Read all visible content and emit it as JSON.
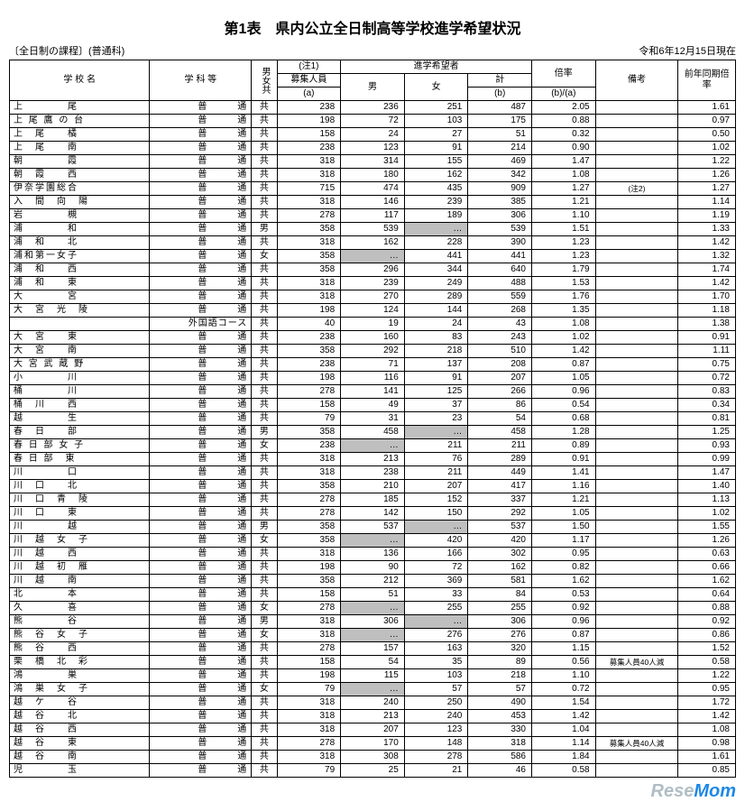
{
  "title": "第1表　県内公立全日制高等学校進学希望状況",
  "subtitle_left": "〔全日制の課程〕(普通科)",
  "subtitle_right": "令和6年12月15日現在",
  "header": {
    "school": "学 校 名",
    "dept": "学 科 等",
    "sex": "男女共",
    "note1": "(注1)",
    "capacity": "募集人員",
    "capacity_sub": "(a)",
    "applicants": "進学希望者",
    "male": "男",
    "female": "女",
    "total": "計",
    "total_sub": "(b)",
    "ratio": "倍率",
    "ratio_sub": "(b)/(a)",
    "remark": "備考",
    "prev": "前年同期倍率"
  },
  "rows": [
    {
      "school": "上　　　　尾",
      "dept": "普　　　通",
      "sex": "共",
      "cap": "238",
      "m": "236",
      "f": "251",
      "t": "487",
      "r": "2.05",
      "rm": "",
      "p": "1.61"
    },
    {
      "school": "上 尾 鷹 の 台",
      "dept": "普　　　通",
      "sex": "共",
      "cap": "198",
      "m": "72",
      "f": "103",
      "t": "175",
      "r": "0.88",
      "rm": "",
      "p": "0.97"
    },
    {
      "school": "上　尾　　橘",
      "dept": "普　　　通",
      "sex": "共",
      "cap": "158",
      "m": "24",
      "f": "27",
      "t": "51",
      "r": "0.32",
      "rm": "",
      "p": "0.50"
    },
    {
      "school": "上　尾　　南",
      "dept": "普　　　通",
      "sex": "共",
      "cap": "238",
      "m": "123",
      "f": "91",
      "t": "214",
      "r": "0.90",
      "rm": "",
      "p": "1.02"
    },
    {
      "school": "朝　　　　霞",
      "dept": "普　　　通",
      "sex": "共",
      "cap": "318",
      "m": "314",
      "f": "155",
      "t": "469",
      "r": "1.47",
      "rm": "",
      "p": "1.22"
    },
    {
      "school": "朝　霞　　西",
      "dept": "普　　　通",
      "sex": "共",
      "cap": "318",
      "m": "180",
      "f": "162",
      "t": "342",
      "r": "1.08",
      "rm": "",
      "p": "1.26"
    },
    {
      "school": "伊奈学園総合",
      "dept": "普　　　通",
      "sex": "共",
      "cap": "715",
      "m": "474",
      "f": "435",
      "t": "909",
      "r": "1.27",
      "rm": "(注2)",
      "p": "1.27"
    },
    {
      "school": "入　間　向　陽",
      "dept": "普　　　通",
      "sex": "共",
      "cap": "318",
      "m": "146",
      "f": "239",
      "t": "385",
      "r": "1.21",
      "rm": "",
      "p": "1.14"
    },
    {
      "school": "岩　　　　槻",
      "dept": "普　　　通",
      "sex": "共",
      "cap": "278",
      "m": "117",
      "f": "189",
      "t": "306",
      "r": "1.10",
      "rm": "",
      "p": "1.19"
    },
    {
      "school": "浦　　　　和",
      "dept": "普　　　通",
      "sex": "男",
      "cap": "358",
      "m": "539",
      "f": "…",
      "fg": true,
      "t": "539",
      "r": "1.51",
      "rm": "",
      "p": "1.33"
    },
    {
      "school": "浦　和　　北",
      "dept": "普　　　通",
      "sex": "共",
      "cap": "318",
      "m": "162",
      "f": "228",
      "t": "390",
      "r": "1.23",
      "rm": "",
      "p": "1.42"
    },
    {
      "school": "浦和第一女子",
      "dept": "普　　　通",
      "sex": "女",
      "cap": "358",
      "m": "…",
      "mg": true,
      "f": "441",
      "t": "441",
      "r": "1.23",
      "rm": "",
      "p": "1.32"
    },
    {
      "school": "浦　和　　西",
      "dept": "普　　　通",
      "sex": "共",
      "cap": "358",
      "m": "296",
      "f": "344",
      "t": "640",
      "r": "1.79",
      "rm": "",
      "p": "1.74"
    },
    {
      "school": "浦　和　　東",
      "dept": "普　　　通",
      "sex": "共",
      "cap": "318",
      "m": "239",
      "f": "249",
      "t": "488",
      "r": "1.53",
      "rm": "",
      "p": "1.42"
    },
    {
      "school": "大　　　　宮",
      "dept": "普　　　通",
      "sex": "共",
      "cap": "318",
      "m": "270",
      "f": "289",
      "t": "559",
      "r": "1.76",
      "rm": "",
      "p": "1.70"
    },
    {
      "school": "大　宮　光　陵",
      "dept": "普　　　通",
      "sex": "共",
      "cap": "198",
      "m": "124",
      "f": "144",
      "t": "268",
      "r": "1.35",
      "rm": "",
      "p": "1.18"
    },
    {
      "school": "",
      "dept": "外国語コース",
      "sex": "共",
      "cap": "40",
      "m": "19",
      "f": "24",
      "t": "43",
      "r": "1.08",
      "rm": "",
      "p": "1.38"
    },
    {
      "school": "大　宮　　東",
      "dept": "普　　　通",
      "sex": "共",
      "cap": "238",
      "m": "160",
      "f": "83",
      "t": "243",
      "r": "1.02",
      "rm": "",
      "p": "0.91"
    },
    {
      "school": "大　宮　　南",
      "dept": "普　　　通",
      "sex": "共",
      "cap": "358",
      "m": "292",
      "f": "218",
      "t": "510",
      "r": "1.42",
      "rm": "",
      "p": "1.11"
    },
    {
      "school": "大 宮 武 蔵 野",
      "dept": "普　　　通",
      "sex": "共",
      "cap": "238",
      "m": "71",
      "f": "137",
      "t": "208",
      "r": "0.87",
      "rm": "",
      "p": "0.75"
    },
    {
      "school": "小　　　　川",
      "dept": "普　　　通",
      "sex": "共",
      "cap": "198",
      "m": "116",
      "f": "91",
      "t": "207",
      "r": "1.05",
      "rm": "",
      "p": "0.72"
    },
    {
      "school": "桶　　　　川",
      "dept": "普　　　通",
      "sex": "共",
      "cap": "278",
      "m": "141",
      "f": "125",
      "t": "266",
      "r": "0.96",
      "rm": "",
      "p": "0.83"
    },
    {
      "school": "桶　川　　西",
      "dept": "普　　　通",
      "sex": "共",
      "cap": "158",
      "m": "49",
      "f": "37",
      "t": "86",
      "r": "0.54",
      "rm": "",
      "p": "0.34"
    },
    {
      "school": "越　　　　生",
      "dept": "普　　　通",
      "sex": "共",
      "cap": "79",
      "m": "31",
      "f": "23",
      "t": "54",
      "r": "0.68",
      "rm": "",
      "p": "0.81"
    },
    {
      "school": "春　日　　部",
      "dept": "普　　　通",
      "sex": "男",
      "cap": "358",
      "m": "458",
      "f": "…",
      "fg": true,
      "t": "458",
      "r": "1.28",
      "rm": "",
      "p": "1.25"
    },
    {
      "school": "春 日 部 女 子",
      "dept": "普　　　通",
      "sex": "女",
      "cap": "238",
      "m": "…",
      "mg": true,
      "f": "211",
      "t": "211",
      "r": "0.89",
      "rm": "",
      "p": "0.93"
    },
    {
      "school": "春 日 部　東",
      "dept": "普　　　通",
      "sex": "共",
      "cap": "318",
      "m": "213",
      "f": "76",
      "t": "289",
      "r": "0.91",
      "rm": "",
      "p": "0.99"
    },
    {
      "school": "川　　　　口",
      "dept": "普　　　通",
      "sex": "共",
      "cap": "318",
      "m": "238",
      "f": "211",
      "t": "449",
      "r": "1.41",
      "rm": "",
      "p": "1.47"
    },
    {
      "school": "川　口　　北",
      "dept": "普　　　通",
      "sex": "共",
      "cap": "358",
      "m": "210",
      "f": "207",
      "t": "417",
      "r": "1.16",
      "rm": "",
      "p": "1.40"
    },
    {
      "school": "川　口　青　陵",
      "dept": "普　　　通",
      "sex": "共",
      "cap": "278",
      "m": "185",
      "f": "152",
      "t": "337",
      "r": "1.21",
      "rm": "",
      "p": "1.13"
    },
    {
      "school": "川　口　　東",
      "dept": "普　　　通",
      "sex": "共",
      "cap": "278",
      "m": "142",
      "f": "150",
      "t": "292",
      "r": "1.05",
      "rm": "",
      "p": "1.02"
    },
    {
      "school": "川　　　　越",
      "dept": "普　　　通",
      "sex": "男",
      "cap": "358",
      "m": "537",
      "f": "…",
      "fg": true,
      "t": "537",
      "r": "1.50",
      "rm": "",
      "p": "1.55"
    },
    {
      "school": "川　越　女　子",
      "dept": "普　　　通",
      "sex": "女",
      "cap": "358",
      "m": "…",
      "mg": true,
      "f": "420",
      "t": "420",
      "r": "1.17",
      "rm": "",
      "p": "1.26"
    },
    {
      "school": "川　越　　西",
      "dept": "普　　　通",
      "sex": "共",
      "cap": "318",
      "m": "136",
      "f": "166",
      "t": "302",
      "r": "0.95",
      "rm": "",
      "p": "0.63"
    },
    {
      "school": "川　越　初　雁",
      "dept": "普　　　通",
      "sex": "共",
      "cap": "198",
      "m": "90",
      "f": "72",
      "t": "162",
      "r": "0.82",
      "rm": "",
      "p": "0.66"
    },
    {
      "school": "川　越　　南",
      "dept": "普　　　通",
      "sex": "共",
      "cap": "358",
      "m": "212",
      "f": "369",
      "t": "581",
      "r": "1.62",
      "rm": "",
      "p": "1.62"
    },
    {
      "school": "北　　　　本",
      "dept": "普　　　通",
      "sex": "共",
      "cap": "158",
      "m": "51",
      "f": "33",
      "t": "84",
      "r": "0.53",
      "rm": "",
      "p": "0.64"
    },
    {
      "school": "久　　　　喜",
      "dept": "普　　　通",
      "sex": "女",
      "cap": "278",
      "m": "…",
      "mg": true,
      "f": "255",
      "t": "255",
      "r": "0.92",
      "rm": "",
      "p": "0.88"
    },
    {
      "school": "熊　　　　谷",
      "dept": "普　　　通",
      "sex": "男",
      "cap": "318",
      "m": "306",
      "f": "…",
      "fg": true,
      "t": "306",
      "r": "0.96",
      "rm": "",
      "p": "0.92"
    },
    {
      "school": "熊　谷　女　子",
      "dept": "普　　　通",
      "sex": "女",
      "cap": "318",
      "m": "…",
      "mg": true,
      "f": "276",
      "t": "276",
      "r": "0.87",
      "rm": "",
      "p": "0.86"
    },
    {
      "school": "熊　谷　　西",
      "dept": "普　　　通",
      "sex": "共",
      "cap": "278",
      "m": "157",
      "f": "163",
      "t": "320",
      "r": "1.15",
      "rm": "",
      "p": "1.52"
    },
    {
      "school": "栗　橋　北　彩",
      "dept": "普　　　通",
      "sex": "共",
      "cap": "158",
      "m": "54",
      "f": "35",
      "t": "89",
      "r": "0.56",
      "rm": "募集人員40人減",
      "p": "0.58"
    },
    {
      "school": "鴻　　　　巣",
      "dept": "普　　　通",
      "sex": "共",
      "cap": "198",
      "m": "115",
      "f": "103",
      "t": "218",
      "r": "1.10",
      "rm": "",
      "p": "1.22"
    },
    {
      "school": "鴻　巣　女　子",
      "dept": "普　　　通",
      "sex": "女",
      "cap": "79",
      "m": "…",
      "mg": true,
      "f": "57",
      "t": "57",
      "r": "0.72",
      "rm": "",
      "p": "0.95"
    },
    {
      "school": "越　ケ　　谷",
      "dept": "普　　　通",
      "sex": "共",
      "cap": "318",
      "m": "240",
      "f": "250",
      "t": "490",
      "r": "1.54",
      "rm": "",
      "p": "1.72"
    },
    {
      "school": "越　谷　　北",
      "dept": "普　　　通",
      "sex": "共",
      "cap": "318",
      "m": "213",
      "f": "240",
      "t": "453",
      "r": "1.42",
      "rm": "",
      "p": "1.42"
    },
    {
      "school": "越　谷　　西",
      "dept": "普　　　通",
      "sex": "共",
      "cap": "318",
      "m": "207",
      "f": "123",
      "t": "330",
      "r": "1.04",
      "rm": "",
      "p": "1.08"
    },
    {
      "school": "越　谷　　東",
      "dept": "普　　　通",
      "sex": "共",
      "cap": "278",
      "m": "170",
      "f": "148",
      "t": "318",
      "r": "1.14",
      "rm": "募集人員40人減",
      "p": "0.98"
    },
    {
      "school": "越　谷　　南",
      "dept": "普　　　通",
      "sex": "共",
      "cap": "318",
      "m": "308",
      "f": "278",
      "t": "586",
      "r": "1.84",
      "rm": "",
      "p": "1.61"
    },
    {
      "school": "児　　　　玉",
      "dept": "普　　　通",
      "sex": "共",
      "cap": "79",
      "m": "25",
      "f": "21",
      "t": "46",
      "r": "0.58",
      "rm": "",
      "p": "0.85"
    }
  ],
  "logo_left": "Rese",
  "logo_right": "Mom"
}
